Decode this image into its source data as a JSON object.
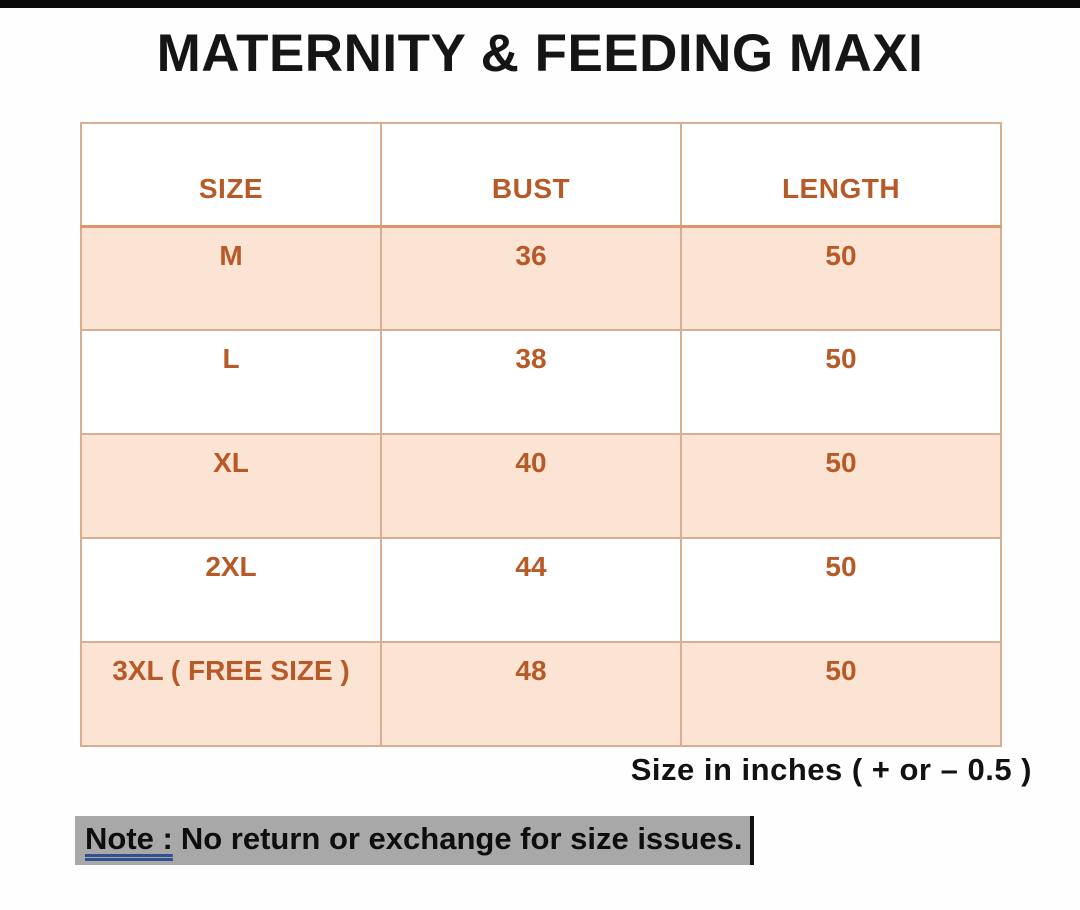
{
  "page": {
    "title": "MATERNITY & FEEDING MAXI"
  },
  "table": {
    "headers": [
      "SIZE",
      "BUST",
      "LENGTH"
    ],
    "rows": [
      {
        "size": "M",
        "bust": "36",
        "length": "50"
      },
      {
        "size": "L",
        "bust": "38",
        "length": "50"
      },
      {
        "size": "XL",
        "bust": "40",
        "length": "50"
      },
      {
        "size": "2XL",
        "bust": "44",
        "length": "50"
      },
      {
        "size": "3XL ( FREE SIZE )",
        "bust": "48",
        "length": "50"
      }
    ]
  },
  "chart_data": {
    "type": "table",
    "title": "MATERNITY & FEEDING MAXI",
    "columns": [
      "SIZE",
      "BUST",
      "LENGTH"
    ],
    "rows": [
      [
        "M",
        36,
        50
      ],
      [
        "L",
        38,
        50
      ],
      [
        "XL",
        40,
        50
      ],
      [
        "2XL",
        44,
        50
      ],
      [
        "3XL ( FREE SIZE )",
        48,
        50
      ]
    ],
    "units": "inches",
    "tolerance": "+ or - 0.5"
  },
  "footnote": "Size in inches ( + or  – 0.5 )",
  "note": {
    "label": "Note :",
    "text": "No return or exchange for size issues."
  },
  "colors": {
    "accent_text": "#b85a27",
    "row_shade": "#fce4d4",
    "table_border": "#d8ae92",
    "header_underline": "#dd9468",
    "note_highlight": "#a8a8a8",
    "note_underline": "#30508e",
    "top_strip": "#0b0b0b"
  }
}
